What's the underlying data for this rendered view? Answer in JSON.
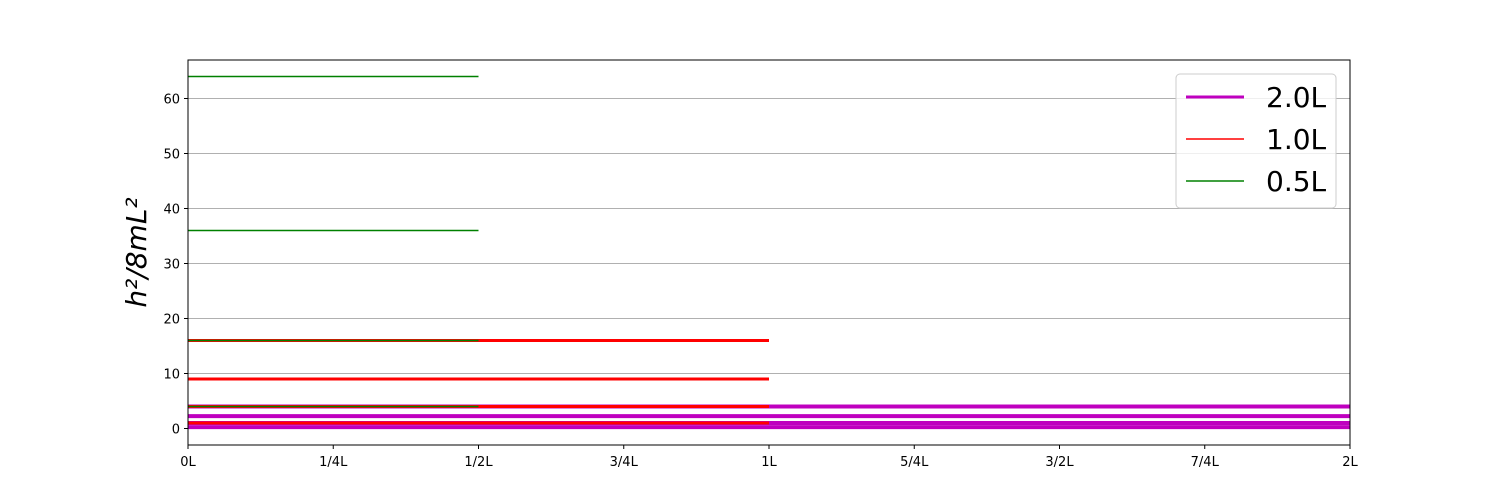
{
  "chart_data": {
    "type": "line",
    "title": "",
    "xlabel": "",
    "ylabel": "h²/8mL²",
    "xlim": [
      0,
      2
    ],
    "ylim": [
      -3,
      67
    ],
    "x_ticks": [
      {
        "value": 0,
        "label": "0L"
      },
      {
        "value": 0.25,
        "label": "1/4L"
      },
      {
        "value": 0.5,
        "label": "1/2L"
      },
      {
        "value": 0.75,
        "label": "3/4L"
      },
      {
        "value": 1.0,
        "label": "1L"
      },
      {
        "value": 1.25,
        "label": "5/4L"
      },
      {
        "value": 1.5,
        "label": "3/2L"
      },
      {
        "value": 1.75,
        "label": "7/4L"
      },
      {
        "value": 2.0,
        "label": "2L"
      }
    ],
    "y_ticks": [
      {
        "value": 0,
        "label": "0"
      },
      {
        "value": 10,
        "label": "10"
      },
      {
        "value": 20,
        "label": "20"
      },
      {
        "value": 30,
        "label": "30"
      },
      {
        "value": 40,
        "label": "40"
      },
      {
        "value": 50,
        "label": "50"
      },
      {
        "value": 60,
        "label": "60"
      }
    ],
    "grid": "horizontal",
    "legend_position": "top-right",
    "series": [
      {
        "name": "2.0L",
        "color": "#bf00bf",
        "width_L": 2.0,
        "levels": [
          0.25,
          1,
          2.25,
          4
        ]
      },
      {
        "name": "1.0L",
        "color": "#ff0000",
        "width_L": 1.0,
        "levels": [
          1,
          4,
          9,
          16
        ]
      },
      {
        "name": "0.5L",
        "color": "#008000",
        "width_L": 0.5,
        "levels": [
          4,
          16,
          36,
          64
        ]
      }
    ]
  }
}
